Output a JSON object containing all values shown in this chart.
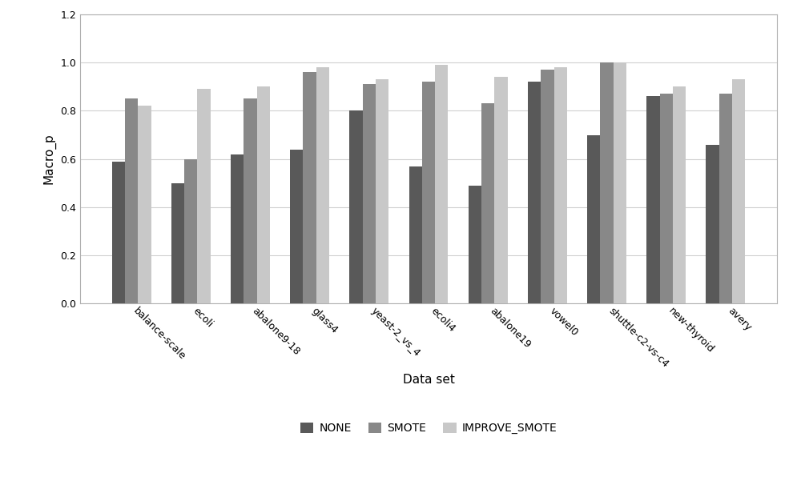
{
  "categories": [
    "balance-scale",
    "ecoli",
    "abalone9-18",
    "glass4",
    "yeast-2_vs_4",
    "ecoli4",
    "abalone19",
    "vowel0",
    "shuttle-c2-vs-c4",
    "new-thyroid",
    "avery"
  ],
  "none": [
    0.59,
    0.5,
    0.62,
    0.64,
    0.8,
    0.57,
    0.49,
    0.92,
    0.7,
    0.86,
    0.66
  ],
  "smote": [
    0.85,
    0.6,
    0.85,
    0.96,
    0.91,
    0.92,
    0.83,
    0.97,
    1.0,
    0.87,
    0.87
  ],
  "improve_smote": [
    0.82,
    0.89,
    0.9,
    0.98,
    0.93,
    0.99,
    0.94,
    0.98,
    1.0,
    0.9,
    0.93
  ],
  "none_color": "#595959",
  "smote_color": "#888888",
  "improve_smote_color": "#c8c8c8",
  "xlabel": "Data set",
  "ylabel": "Macro_p",
  "ylim": [
    0,
    1.2
  ],
  "yticks": [
    0,
    0.2,
    0.4,
    0.6,
    0.8,
    1.0,
    1.2
  ],
  "legend_labels": [
    "NONE",
    "SMOTE",
    "IMPROVE_SMOTE"
  ],
  "bar_width": 0.22,
  "figsize": [
    10.0,
    6.11
  ],
  "dpi": 100
}
